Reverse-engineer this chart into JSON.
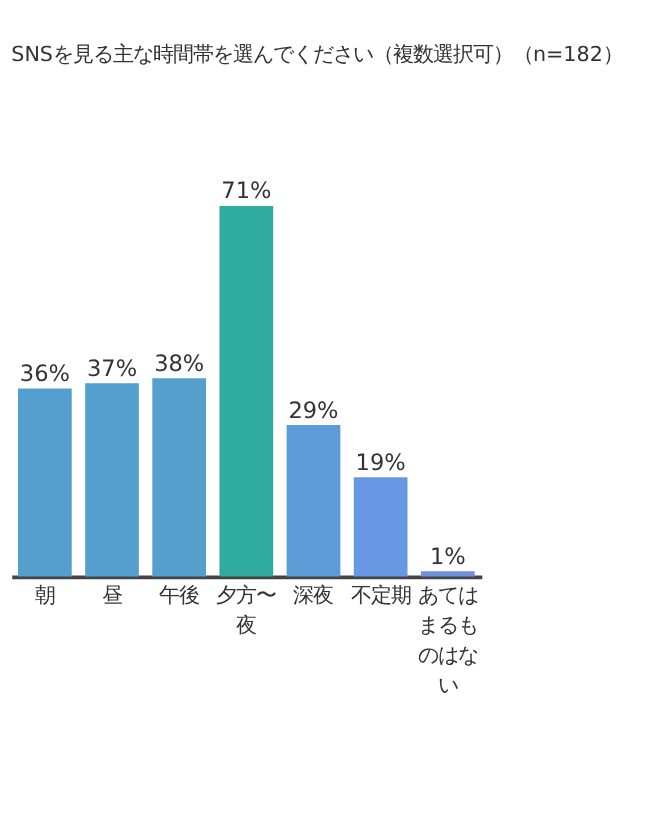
{
  "chart_data": {
    "type": "bar",
    "title": "SNSを見る主な時間帯を選んでください（複数選択可）（n=182）",
    "categories": [
      "朝",
      "昼",
      "午後",
      "夕方〜夜",
      "深夜",
      "不定期",
      "あてはまるものはない"
    ],
    "values": [
      36,
      37,
      38,
      71,
      29,
      19,
      1
    ],
    "colors": [
      "#559fcf",
      "#559fcf",
      "#559fcf",
      "#2fac9f",
      "#5d9ad8",
      "#6898e4",
      "#6f8fe3"
    ],
    "value_labels": [
      "36%",
      "37%",
      "38%",
      "71%",
      "29%",
      "19%",
      "1%"
    ],
    "grid": false
  }
}
